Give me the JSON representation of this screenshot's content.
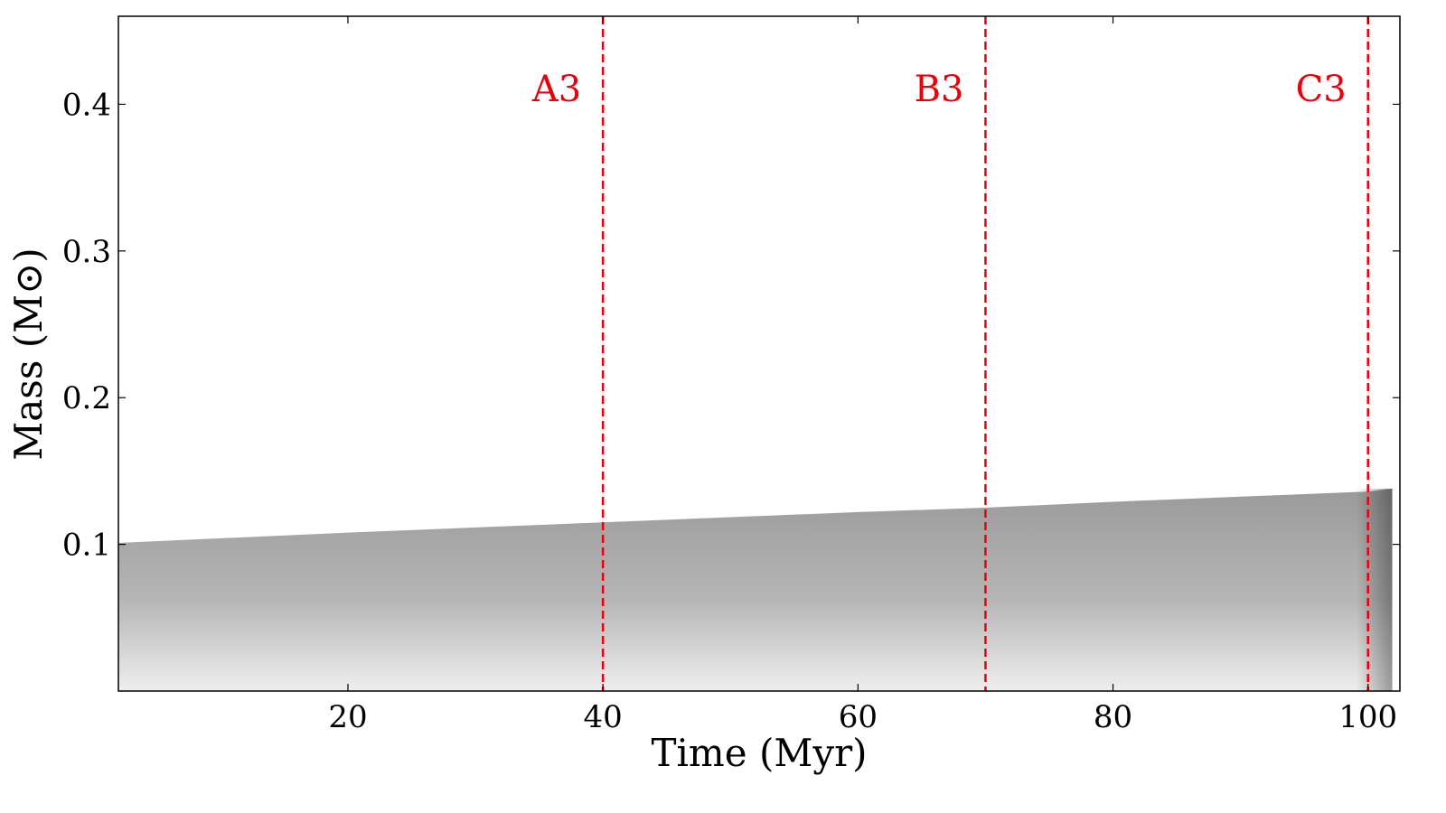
{
  "chart_data": {
    "type": "area",
    "xlabel": "Time (Myr)",
    "ylabel": "Mass (M⊙)",
    "xlim": [
      2,
      102.5
    ],
    "ylim": [
      0,
      0.46
    ],
    "xticks": [
      20,
      40,
      60,
      80,
      100
    ],
    "xtick_labels": [
      "20",
      "40",
      "60",
      "80",
      "100"
    ],
    "yticks": [
      0.1,
      0.2,
      0.3,
      0.4
    ],
    "ytick_labels": [
      "0.1",
      "0.2",
      "0.3",
      "0.4"
    ],
    "grid": false,
    "series": [
      {
        "fill": "grayscale gradient",
        "x": [
          2,
          20,
          40,
          60,
          70,
          80,
          100,
          101.9
        ],
        "values": [
          0.101,
          0.108,
          0.115,
          0.122,
          0.125,
          0.129,
          0.136,
          0.138
        ]
      }
    ],
    "markers": [
      {
        "label": "A3",
        "x": 40,
        "color": "#e8000b"
      },
      {
        "label": "B3",
        "x": 70,
        "color": "#e8000b"
      },
      {
        "label": "C3",
        "x": 100,
        "color": "#e8000b"
      }
    ]
  }
}
